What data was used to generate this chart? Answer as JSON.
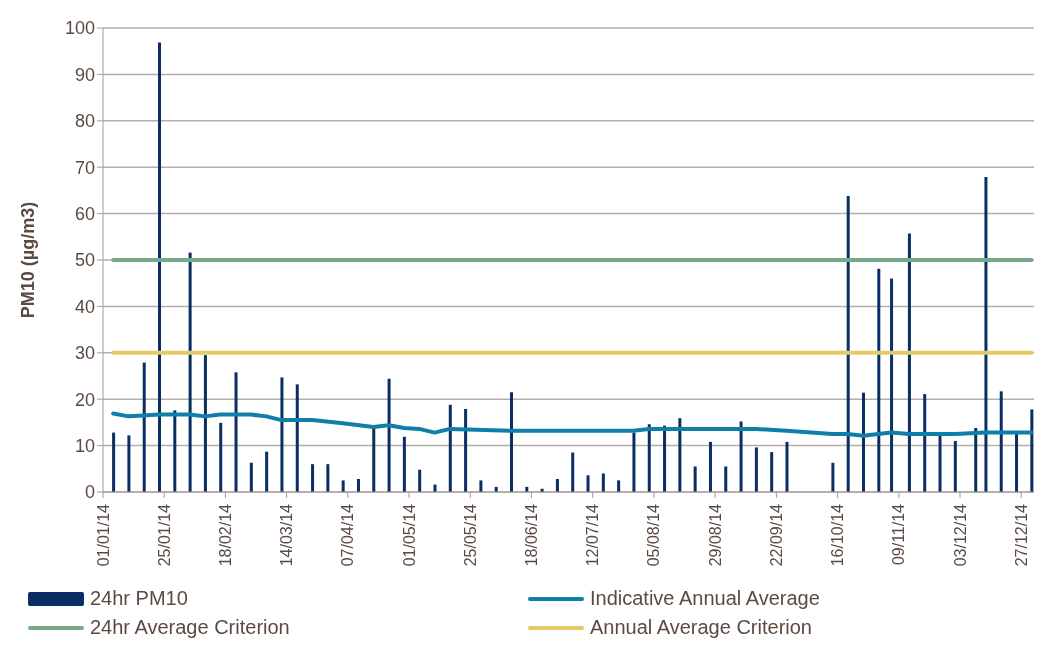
{
  "chart_data": {
    "type": "bar",
    "ylabel": "PM10 (µg/m3)",
    "xlim": [
      "2014-01-01",
      "2015-01-01"
    ],
    "xticks": [
      {
        "value": "2014-01-01",
        "label": "01/01/14"
      },
      {
        "value": "2014-01-25",
        "label": "25/01/14"
      },
      {
        "value": "2014-02-18",
        "label": "18/02/14"
      },
      {
        "value": "2014-03-14",
        "label": "14/03/14"
      },
      {
        "value": "2014-04-07",
        "label": "07/04/14"
      },
      {
        "value": "2014-05-01",
        "label": "01/05/14"
      },
      {
        "value": "2014-05-25",
        "label": "25/05/14"
      },
      {
        "value": "2014-06-18",
        "label": "18/06/14"
      },
      {
        "value": "2014-07-12",
        "label": "12/07/14"
      },
      {
        "value": "2014-08-05",
        "label": "05/08/14"
      },
      {
        "value": "2014-08-29",
        "label": "29/08/14"
      },
      {
        "value": "2014-09-22",
        "label": "22/09/14"
      },
      {
        "value": "2014-10-16",
        "label": "16/10/14"
      },
      {
        "value": "2014-11-09",
        "label": "09/11/14"
      },
      {
        "value": "2014-12-03",
        "label": "03/12/14"
      },
      {
        "value": "2014-12-27",
        "label": "27/12/14"
      }
    ],
    "ylim": [
      0,
      100
    ],
    "yticks": [
      0,
      10,
      20,
      30,
      40,
      50,
      60,
      70,
      80,
      90,
      100
    ],
    "grid": "y",
    "legend": "bottom",
    "series": [
      {
        "name": "24hr PM10",
        "color": "#0a2d63",
        "x": [
          "2014-01-05",
          "2014-01-11",
          "2014-01-17",
          "2014-01-23",
          "2014-01-29",
          "2014-02-04",
          "2014-02-10",
          "2014-02-16",
          "2014-02-22",
          "2014-02-28",
          "2014-03-06",
          "2014-03-12",
          "2014-03-18",
          "2014-03-24",
          "2014-03-30",
          "2014-04-05",
          "2014-04-11",
          "2014-04-17",
          "2014-04-23",
          "2014-04-29",
          "2014-05-05",
          "2014-05-11",
          "2014-05-17",
          "2014-05-23",
          "2014-05-29",
          "2014-06-04",
          "2014-06-10",
          "2014-06-16",
          "2014-06-22",
          "2014-06-28",
          "2014-07-04",
          "2014-07-10",
          "2014-07-16",
          "2014-07-22",
          "2014-07-28",
          "2014-08-03",
          "2014-08-09",
          "2014-08-15",
          "2014-08-21",
          "2014-08-27",
          "2014-09-02",
          "2014-09-08",
          "2014-09-14",
          "2014-09-20",
          "2014-09-26",
          "2014-10-14",
          "2014-10-20",
          "2014-10-26",
          "2014-11-01",
          "2014-11-06",
          "2014-11-13",
          "2014-11-19",
          "2014-11-25",
          "2014-12-01",
          "2014-12-09",
          "2014-12-13",
          "2014-12-19",
          "2014-12-25",
          "2014-12-31"
        ],
        "values": [
          12.8,
          12.2,
          27.9,
          96.9,
          17.6,
          51.6,
          29.5,
          14.9,
          25.8,
          6.3,
          8.7,
          24.7,
          23.2,
          6.0,
          6.0,
          2.5,
          2.8,
          14.0,
          24.4,
          11.9,
          4.8,
          1.6,
          18.8,
          17.9,
          2.5,
          1.1,
          21.5,
          1.1,
          0.7,
          2.8,
          8.5,
          3.6,
          4.0,
          2.5,
          12.8,
          14.6,
          14.3,
          15.9,
          5.5,
          10.8,
          5.5,
          15.2,
          9.6,
          8.6,
          10.8,
          6.3,
          63.8,
          21.4,
          48.1,
          46.0,
          55.7,
          21.1,
          12.5,
          11.0,
          13.8,
          67.9,
          21.7,
          12.5,
          17.8
        ]
      },
      {
        "name": "Indicative Annual Average",
        "type": "line",
        "color": "#0e7fa6",
        "x": [
          "2014-01-05",
          "2014-01-11",
          "2014-01-17",
          "2014-01-23",
          "2014-02-04",
          "2014-02-10",
          "2014-02-16",
          "2014-02-28",
          "2014-03-06",
          "2014-03-12",
          "2014-03-24",
          "2014-04-05",
          "2014-04-17",
          "2014-04-23",
          "2014-04-29",
          "2014-05-05",
          "2014-05-11",
          "2014-05-17",
          "2014-06-10",
          "2014-07-28",
          "2014-08-03",
          "2014-08-15",
          "2014-09-02",
          "2014-09-14",
          "2014-09-26",
          "2014-10-14",
          "2014-10-20",
          "2014-10-26",
          "2014-11-06",
          "2014-11-13",
          "2014-12-01",
          "2014-12-13",
          "2014-12-31"
        ],
        "values": [
          16.9,
          16.3,
          16.5,
          16.7,
          16.7,
          16.3,
          16.7,
          16.7,
          16.3,
          15.5,
          15.5,
          14.8,
          14.0,
          14.4,
          13.8,
          13.6,
          12.8,
          13.6,
          13.2,
          13.2,
          13.6,
          13.6,
          13.6,
          13.6,
          13.2,
          12.5,
          12.5,
          12.1,
          12.8,
          12.5,
          12.5,
          12.8,
          12.8
        ]
      },
      {
        "name": "24hr Average Criterion",
        "type": "line",
        "color": "#76a88a",
        "x": [
          "2014-01-05",
          "2014-12-31"
        ],
        "values": [
          50,
          50
        ]
      },
      {
        "name": "Annual Average Criterion",
        "type": "line",
        "color": "#e8c96a",
        "x": [
          "2014-01-05",
          "2014-12-31"
        ],
        "values": [
          30,
          30
        ]
      }
    ]
  }
}
